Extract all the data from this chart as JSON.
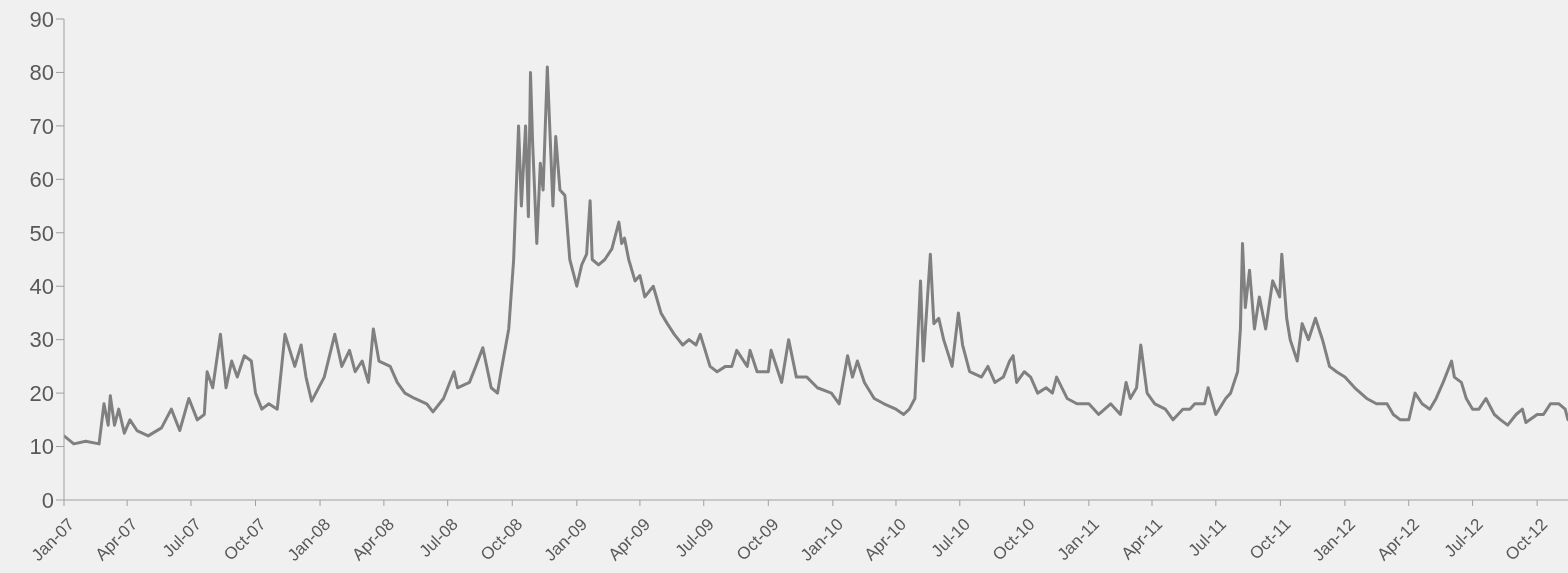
{
  "chart_data": {
    "type": "line",
    "xlim": [
      "2007-01-01",
      "2012-11-14"
    ],
    "ylim": [
      0,
      90
    ],
    "yticks": [
      0,
      10,
      20,
      30,
      40,
      50,
      60,
      70,
      80,
      90
    ],
    "xticks": [
      {
        "value": "2007-01-01",
        "label": "Jan-07"
      },
      {
        "value": "2007-04-01",
        "label": "Apr-07"
      },
      {
        "value": "2007-07-01",
        "label": "Jul-07"
      },
      {
        "value": "2007-10-01",
        "label": "Oct-07"
      },
      {
        "value": "2008-01-01",
        "label": "Jan-08"
      },
      {
        "value": "2008-04-01",
        "label": "Apr-08"
      },
      {
        "value": "2008-07-01",
        "label": "Jul-08"
      },
      {
        "value": "2008-10-01",
        "label": "Oct-08"
      },
      {
        "value": "2009-01-01",
        "label": "Jan-09"
      },
      {
        "value": "2009-04-01",
        "label": "Apr-09"
      },
      {
        "value": "2009-07-01",
        "label": "Jul-09"
      },
      {
        "value": "2009-10-01",
        "label": "Oct-09"
      },
      {
        "value": "2010-01-01",
        "label": "Jan-10"
      },
      {
        "value": "2010-04-01",
        "label": "Apr-10"
      },
      {
        "value": "2010-07-01",
        "label": "Jul-10"
      },
      {
        "value": "2010-10-01",
        "label": "Oct-10"
      },
      {
        "value": "2011-01-01",
        "label": "Jan-11"
      },
      {
        "value": "2011-04-01",
        "label": "Apr-11"
      },
      {
        "value": "2011-07-01",
        "label": "Jul-11"
      },
      {
        "value": "2011-10-01",
        "label": "Oct-11"
      },
      {
        "value": "2012-01-01",
        "label": "Jan-12"
      },
      {
        "value": "2012-04-01",
        "label": "Apr-12"
      },
      {
        "value": "2012-07-01",
        "label": "Jul-12"
      },
      {
        "value": "2012-10-01",
        "label": "Oct-12"
      }
    ],
    "grid": false,
    "marker": "none",
    "line_style": "solid",
    "series": [
      {
        "color": "#808080",
        "x": [
          "2007-01-01",
          "2007-01-15",
          "2007-02-01",
          "2007-02-20",
          "2007-02-27",
          "2007-03-05",
          "2007-03-08",
          "2007-03-14",
          "2007-03-20",
          "2007-03-28",
          "2007-04-05",
          "2007-04-15",
          "2007-05-01",
          "2007-05-20",
          "2007-06-03",
          "2007-06-15",
          "2007-06-28",
          "2007-07-10",
          "2007-07-20",
          "2007-07-24",
          "2007-08-01",
          "2007-08-12",
          "2007-08-20",
          "2007-08-28",
          "2007-09-05",
          "2007-09-15",
          "2007-09-25",
          "2007-10-01",
          "2007-10-10",
          "2007-10-20",
          "2007-11-01",
          "2007-11-12",
          "2007-11-26",
          "2007-12-05",
          "2007-12-12",
          "2007-12-20",
          "2008-01-07",
          "2008-01-22",
          "2008-02-01",
          "2008-02-12",
          "2008-02-20",
          "2008-03-01",
          "2008-03-10",
          "2008-03-17",
          "2008-03-25",
          "2008-04-10",
          "2008-04-20",
          "2008-05-01",
          "2008-05-15",
          "2008-06-01",
          "2008-06-10",
          "2008-06-25",
          "2008-07-10",
          "2008-07-15",
          "2008-08-01",
          "2008-08-10",
          "2008-08-20",
          "2008-09-01",
          "2008-09-10",
          "2008-09-15",
          "2008-09-26",
          "2008-10-03",
          "2008-10-10",
          "2008-10-14",
          "2008-10-20",
          "2008-10-24",
          "2008-10-27",
          "2008-10-30",
          "2008-11-05",
          "2008-11-10",
          "2008-11-14",
          "2008-11-20",
          "2008-11-24",
          "2008-11-28",
          "2008-12-02",
          "2008-12-08",
          "2008-12-15",
          "2008-12-22",
          "2009-01-01",
          "2009-01-08",
          "2009-01-15",
          "2009-01-20",
          "2009-01-23",
          "2009-02-01",
          "2009-02-10",
          "2009-02-20",
          "2009-03-02",
          "2009-03-06",
          "2009-03-10",
          "2009-03-16",
          "2009-03-25",
          "2009-04-01",
          "2009-04-08",
          "2009-04-20",
          "2009-05-01",
          "2009-05-10",
          "2009-05-20",
          "2009-06-01",
          "2009-06-10",
          "2009-06-20",
          "2009-06-26",
          "2009-07-10",
          "2009-07-20",
          "2009-08-01",
          "2009-08-10",
          "2009-08-17",
          "2009-09-01",
          "2009-09-05",
          "2009-09-15",
          "2009-10-01",
          "2009-10-05",
          "2009-10-20",
          "2009-10-30",
          "2009-11-10",
          "2009-11-25",
          "2009-12-10",
          "2009-12-30",
          "2010-01-10",
          "2010-01-22",
          "2010-01-29",
          "2010-02-05",
          "2010-02-15",
          "2010-03-01",
          "2010-03-15",
          "2010-04-01",
          "2010-04-12",
          "2010-04-20",
          "2010-04-28",
          "2010-05-06",
          "2010-05-10",
          "2010-05-20",
          "2010-05-25",
          "2010-06-01",
          "2010-06-08",
          "2010-06-20",
          "2010-06-29",
          "2010-07-05",
          "2010-07-15",
          "2010-08-01",
          "2010-08-10",
          "2010-08-20",
          "2010-09-01",
          "2010-09-10",
          "2010-09-15",
          "2010-09-20",
          "2010-10-01",
          "2010-10-10",
          "2010-10-20",
          "2010-11-01",
          "2010-11-10",
          "2010-11-16",
          "2010-12-01",
          "2010-12-15",
          "2011-01-01",
          "2011-01-15",
          "2011-02-01",
          "2011-02-15",
          "2011-02-23",
          "2011-03-01",
          "2011-03-10",
          "2011-03-16",
          "2011-03-25",
          "2011-04-05",
          "2011-04-20",
          "2011-05-01",
          "2011-05-15",
          "2011-05-25",
          "2011-06-01",
          "2011-06-15",
          "2011-06-20",
          "2011-07-01",
          "2011-07-15",
          "2011-07-22",
          "2011-08-01",
          "2011-08-05",
          "2011-08-08",
          "2011-08-12",
          "2011-08-18",
          "2011-08-25",
          "2011-09-01",
          "2011-09-10",
          "2011-09-20",
          "2011-09-30",
          "2011-10-03",
          "2011-10-10",
          "2011-10-15",
          "2011-10-25",
          "2011-11-01",
          "2011-11-10",
          "2011-11-20",
          "2011-11-30",
          "2011-12-10",
          "2011-12-20",
          "2012-01-01",
          "2012-01-15",
          "2012-02-01",
          "2012-02-15",
          "2012-03-01",
          "2012-03-10",
          "2012-03-20",
          "2012-04-01",
          "2012-04-10",
          "2012-04-20",
          "2012-05-01",
          "2012-05-10",
          "2012-05-20",
          "2012-06-01",
          "2012-06-05",
          "2012-06-15",
          "2012-06-22",
          "2012-07-01",
          "2012-07-10",
          "2012-07-20",
          "2012-08-01",
          "2012-08-10",
          "2012-08-20",
          "2012-09-01",
          "2012-09-10",
          "2012-09-15",
          "2012-10-01",
          "2012-10-10",
          "2012-10-20",
          "2012-11-01",
          "2012-11-10",
          "2012-11-14"
        ],
        "values": [
          12,
          10.5,
          11,
          10.5,
          18,
          14,
          19.5,
          14,
          17,
          12.5,
          15,
          13,
          12,
          13.5,
          17,
          13,
          19,
          15,
          16,
          24,
          21,
          31,
          21,
          26,
          23,
          27,
          26,
          20,
          17,
          18,
          17,
          31,
          25,
          29,
          23,
          18.5,
          23,
          31,
          25,
          28,
          24,
          26,
          22,
          32,
          26,
          25,
          22,
          20,
          19,
          18,
          16.5,
          19,
          24,
          21,
          22,
          25,
          28.5,
          21,
          20,
          24,
          32,
          45,
          70,
          55,
          70,
          53,
          80,
          67,
          48,
          63,
          58,
          81,
          68,
          55,
          68,
          58,
          57,
          45,
          40,
          44,
          46,
          56,
          45,
          44,
          45,
          47,
          52,
          48,
          49,
          45,
          41,
          42,
          38,
          40,
          35,
          33,
          31,
          29,
          30,
          29,
          31,
          25,
          24,
          25,
          25,
          28,
          25,
          28,
          24,
          24,
          28,
          22,
          30,
          23,
          23,
          21,
          20,
          18,
          27,
          23,
          26,
          22,
          19,
          18,
          17,
          16,
          17,
          19,
          41,
          26,
          46,
          33,
          34,
          30,
          25,
          35,
          29,
          24,
          23,
          25,
          22,
          23,
          26,
          27,
          22,
          24,
          23,
          20,
          21,
          20,
          23,
          19,
          18,
          18,
          16,
          18,
          16,
          22,
          19,
          21,
          29,
          20,
          18,
          17,
          15,
          17,
          17,
          18,
          18,
          21,
          16,
          19,
          20,
          24,
          32,
          48,
          36,
          43,
          32,
          38,
          32,
          41,
          38,
          46,
          34,
          30,
          26,
          33,
          30,
          34,
          30,
          25,
          24,
          23,
          21,
          19,
          18,
          18,
          16,
          15,
          15,
          20,
          18,
          17,
          19,
          22,
          26,
          23,
          22,
          19,
          17,
          17,
          19,
          16,
          15,
          14,
          16,
          17,
          14.5,
          16,
          16,
          18,
          18,
          17,
          15
        ]
      }
    ]
  }
}
